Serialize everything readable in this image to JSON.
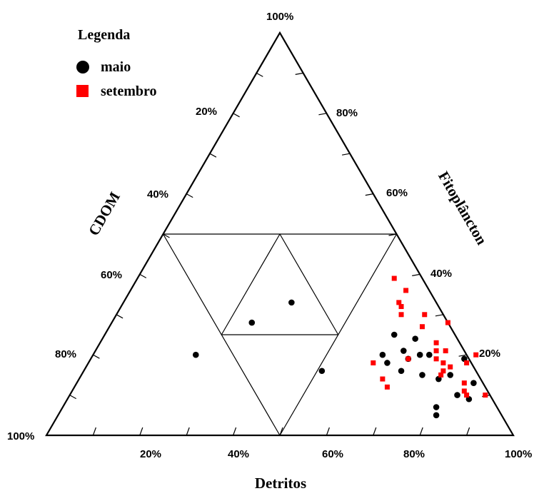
{
  "chart_data": {
    "type": "scatter",
    "subtype": "ternary",
    "axes": {
      "bottom": {
        "label": "Detritos",
        "ticks": [
          "20%",
          "40%",
          "60%",
          "80%",
          "100%"
        ],
        "left_corner": "100%"
      },
      "left": {
        "label": "CDOM",
        "ticks": [
          "20%",
          "40%",
          "60%",
          "80%"
        ]
      },
      "right": {
        "label": "Fitoplâncton",
        "ticks": [
          "80%",
          "60%",
          "40%",
          "20%"
        ],
        "apex": "100%"
      }
    },
    "legend": {
      "title": "Legenda",
      "placement": "top-left",
      "entries": [
        {
          "name": "maio",
          "marker": "circle",
          "color": "#000000"
        },
        {
          "name": "setembro",
          "marker": "square",
          "color": "#ff0000"
        }
      ]
    },
    "series": [
      {
        "name": "maio",
        "color": "#000000",
        "marker": "circle",
        "points": [
          {
            "detritos": 0.36,
            "fitoplancton": 0.33
          },
          {
            "detritos": 0.51,
            "fitoplancton": 0.16
          },
          {
            "detritos": 0.3,
            "fitoplancton": 0.28
          },
          {
            "detritos": 0.22,
            "fitoplancton": 0.2
          },
          {
            "detritos": 0.62,
            "fitoplancton": 0.2
          },
          {
            "detritos": 0.62,
            "fitoplancton": 0.25
          },
          {
            "detritos": 0.66,
            "fitoplancton": 0.21
          },
          {
            "detritos": 0.64,
            "fitoplancton": 0.18
          },
          {
            "detritos": 0.68,
            "fitoplancton": 0.19
          },
          {
            "detritos": 0.67,
            "fitoplancton": 0.24
          },
          {
            "detritos": 0.7,
            "fitoplancton": 0.2
          },
          {
            "detritos": 0.72,
            "fitoplancton": 0.2
          },
          {
            "detritos": 0.68,
            "fitoplancton": 0.16
          },
          {
            "detritos": 0.73,
            "fitoplancton": 0.15
          },
          {
            "detritos": 0.77,
            "fitoplancton": 0.14
          },
          {
            "detritos": 0.8,
            "fitoplancton": 0.19
          },
          {
            "detritos": 0.79,
            "fitoplancton": 0.15
          },
          {
            "detritos": 0.8,
            "fitoplancton": 0.07
          },
          {
            "detritos": 0.81,
            "fitoplancton": 0.05
          },
          {
            "detritos": 0.83,
            "fitoplancton": 0.1
          },
          {
            "detritos": 0.85,
            "fitoplancton": 0.13
          },
          {
            "detritos": 0.86,
            "fitoplancton": 0.09
          }
        ]
      },
      {
        "name": "setembro",
        "color": "#ff0000",
        "marker": "square",
        "points": [
          {
            "detritos": 0.55,
            "fitoplancton": 0.39
          },
          {
            "detritos": 0.59,
            "fitoplancton": 0.36
          },
          {
            "detritos": 0.59,
            "fitoplancton": 0.33
          },
          {
            "detritos": 0.6,
            "fitoplancton": 0.32
          },
          {
            "detritos": 0.61,
            "fitoplancton": 0.3
          },
          {
            "detritos": 0.66,
            "fitoplancton": 0.3
          },
          {
            "detritos": 0.72,
            "fitoplancton": 0.28
          },
          {
            "detritos": 0.67,
            "fitoplancton": 0.27
          },
          {
            "detritos": 0.72,
            "fitoplancton": 0.23
          },
          {
            "detritos": 0.73,
            "fitoplancton": 0.21
          },
          {
            "detritos": 0.75,
            "fitoplancton": 0.21
          },
          {
            "detritos": 0.74,
            "fitoplancton": 0.19
          },
          {
            "detritos": 0.76,
            "fitoplancton": 0.18
          },
          {
            "detritos": 0.77,
            "fitoplancton": 0.16
          },
          {
            "detritos": 0.78,
            "fitoplancton": 0.17
          },
          {
            "detritos": 0.77,
            "fitoplancton": 0.15
          },
          {
            "detritos": 0.81,
            "fitoplancton": 0.18
          },
          {
            "detritos": 0.82,
            "fitoplancton": 0.2
          },
          {
            "detritos": 0.83,
            "fitoplancton": 0.13
          },
          {
            "detritos": 0.84,
            "fitoplancton": 0.11
          },
          {
            "detritos": 0.85,
            "fitoplancton": 0.1
          },
          {
            "detritos": 0.89,
            "fitoplancton": 0.1
          },
          {
            "detritos": 0.61,
            "fitoplancton": 0.18
          },
          {
            "detritos": 0.68,
            "fitoplancton": 0.19
          },
          {
            "detritos": 0.65,
            "fitoplancton": 0.14
          },
          {
            "detritos": 0.67,
            "fitoplancton": 0.12
          }
        ]
      }
    ],
    "grid": "inner triangle subdivision lines"
  }
}
